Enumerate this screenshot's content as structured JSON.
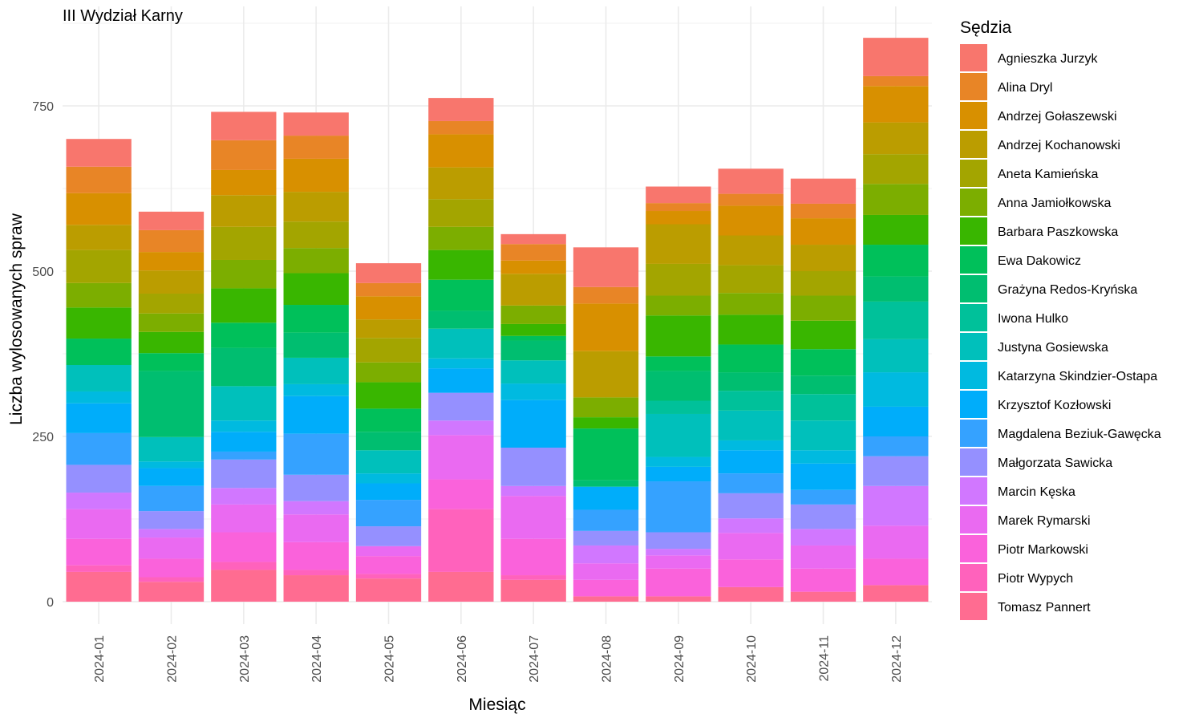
{
  "chart_data": {
    "type": "bar",
    "stacked": true,
    "title": "III Wydział Karny",
    "xlabel": "Miesiąc",
    "ylabel": "Liczba wylosowanych spraw",
    "ylim": [
      0,
      880
    ],
    "yticks": [
      0,
      250,
      500,
      750
    ],
    "grid": true,
    "legend_title": "Sędzia",
    "legend_position": "right",
    "categories": [
      "2024-01",
      "2024-02",
      "2024-03",
      "2024-04",
      "2024-05",
      "2024-06",
      "2024-07",
      "2024-08",
      "2024-09",
      "2024-10",
      "2024-11",
      "2024-12"
    ],
    "series": [
      {
        "name": "Tomasz Pannert",
        "color": "#FF6C91",
        "values": [
          45,
          30,
          48,
          40,
          35,
          45,
          33,
          8,
          8,
          22,
          15,
          25
        ]
      },
      {
        "name": "Piotr Wypych",
        "color": "#FF62BC",
        "values": [
          10,
          7,
          12,
          8,
          7,
          95,
          7,
          0,
          0,
          0,
          0,
          0
        ]
      },
      {
        "name": "Piotr Markowski",
        "color": "#FA62DB",
        "values": [
          40,
          28,
          45,
          42,
          27,
          45,
          55,
          25,
          42,
          42,
          35,
          40
        ]
      },
      {
        "name": "Marek Rymarski",
        "color": "#EA6AF1",
        "values": [
          45,
          32,
          42,
          42,
          15,
          67,
          65,
          25,
          20,
          40,
          35,
          50
        ]
      },
      {
        "name": "Marcin Kęska",
        "color": "#D177FF",
        "values": [
          25,
          13,
          25,
          20,
          0,
          22,
          15,
          27,
          10,
          22,
          25,
          60
        ]
      },
      {
        "name": "Małgorzata Sawicka",
        "color": "#9590FF",
        "values": [
          42,
          27,
          43,
          40,
          30,
          42,
          58,
          22,
          25,
          38,
          37,
          45
        ]
      },
      {
        "name": "Magdalena Beziuk-Gawęcka",
        "color": "#35A2FF",
        "values": [
          48,
          38,
          12,
          62,
          40,
          0,
          0,
          32,
          77,
          30,
          22,
          30
        ]
      },
      {
        "name": "Krzysztof Kozłowski",
        "color": "#00ADFA",
        "values": [
          45,
          27,
          30,
          57,
          25,
          37,
          72,
          35,
          22,
          35,
          40,
          45
        ]
      },
      {
        "name": "Katarzyna Skindzier-Ostapa",
        "color": "#00BAE0",
        "values": [
          18,
          10,
          17,
          18,
          15,
          15,
          25,
          0,
          15,
          15,
          20,
          52
        ]
      },
      {
        "name": "Justyna Gosiewska",
        "color": "#00C0BB",
        "values": [
          40,
          37,
          52,
          40,
          35,
          45,
          35,
          0,
          65,
          45,
          45,
          50
        ]
      },
      {
        "name": "Iwona Hulko",
        "color": "#00C19A",
        "values": [
          0,
          0,
          0,
          0,
          0,
          0,
          0,
          0,
          20,
          30,
          40,
          57
        ]
      },
      {
        "name": "Grażyna Redos-Kryńska",
        "color": "#00BE70",
        "values": [
          0,
          100,
          58,
          38,
          28,
          27,
          30,
          10,
          45,
          28,
          28,
          38
        ]
      },
      {
        "name": "Ewa Dakowicz",
        "color": "#00C05A",
        "values": [
          40,
          27,
          38,
          42,
          35,
          47,
          7,
          78,
          22,
          42,
          40,
          48
        ]
      },
      {
        "name": "Barbara Paszkowska",
        "color": "#39B600",
        "values": [
          47,
          32,
          52,
          48,
          40,
          45,
          18,
          17,
          62,
          45,
          43,
          45
        ]
      },
      {
        "name": "Anna Jamiołkowska",
        "color": "#7CAE00",
        "values": [
          37,
          28,
          43,
          38,
          30,
          35,
          28,
          30,
          30,
          33,
          38,
          47
        ]
      },
      {
        "name": "Aneta Kamieńska",
        "color": "#A3A500",
        "values": [
          50,
          30,
          50,
          40,
          37,
          42,
          0,
          0,
          48,
          42,
          37,
          45
        ]
      },
      {
        "name": "Andrzej Kochanowski",
        "color": "#BB9D00",
        "values": [
          38,
          35,
          48,
          45,
          28,
          48,
          48,
          70,
          60,
          45,
          40,
          48
        ]
      },
      {
        "name": "Andrzej Gołaszewski",
        "color": "#D89000",
        "values": [
          48,
          28,
          38,
          50,
          35,
          50,
          20,
          72,
          20,
          45,
          40,
          55
        ]
      },
      {
        "name": "Alina Dryl",
        "color": "#E88526",
        "values": [
          40,
          33,
          45,
          35,
          20,
          20,
          25,
          25,
          12,
          18,
          22,
          15
        ]
      },
      {
        "name": "Agnieszka Jurzyk",
        "color": "#F8766D",
        "values": [
          42,
          28,
          43,
          35,
          30,
          35,
          15,
          60,
          25,
          38,
          38,
          58
        ]
      }
    ]
  }
}
